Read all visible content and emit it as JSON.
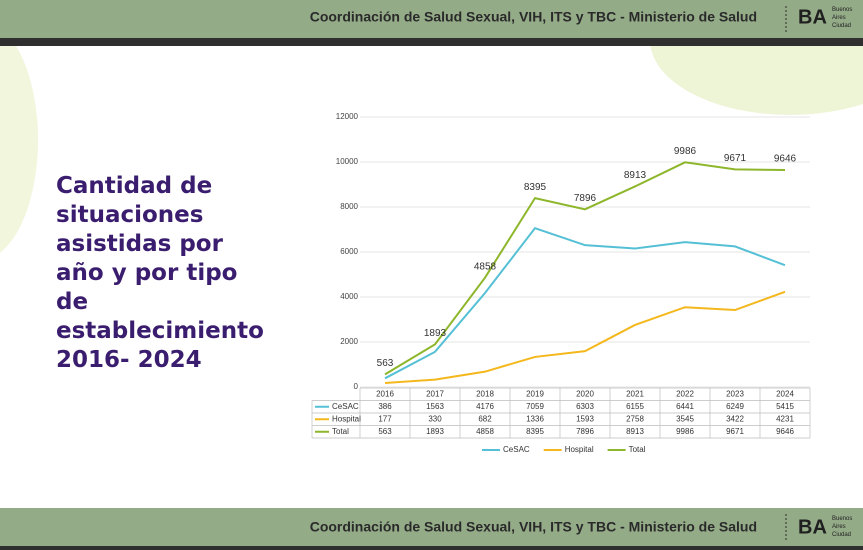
{
  "header": {
    "text": "Coordinación de Salud Sexual, VIH, ITS y TBC - Ministerio de Salud",
    "logo": "BA",
    "logo_text": "Buenos Aires Ciudad"
  },
  "slide_title": "Cantidad de situaciones asistidas por año y por tipo de establecimiento 2016- 2024",
  "footer": {
    "text": "Coordinación de Salud Sexual, VIH, ITS y TBC - Ministerio de Salud",
    "logo": "BA",
    "logo_text": "Buenos Aires Ciudad"
  },
  "chart_data": {
    "type": "line",
    "categories": [
      "2016",
      "2017",
      "2018",
      "2019",
      "2020",
      "2021",
      "2022",
      "2023",
      "2024"
    ],
    "series": [
      {
        "name": "CeSAC",
        "color": "#55c0d5",
        "values": [
          386,
          1563,
          4176,
          7059,
          6303,
          6155,
          6441,
          6249,
          5415
        ]
      },
      {
        "name": "Hospital",
        "color": "#f4b71c",
        "values": [
          177,
          330,
          682,
          1336,
          1593,
          2758,
          3545,
          3422,
          4231
        ]
      },
      {
        "name": "Total",
        "color": "#8db62a",
        "values": [
          563,
          1893,
          4858,
          8395,
          7896,
          8913,
          9986,
          9671,
          9646
        ],
        "data_labels": true
      }
    ],
    "ylim": [
      0,
      12000
    ],
    "yticks": [
      0,
      2000,
      4000,
      6000,
      8000,
      10000,
      12000
    ],
    "grid": true,
    "legend": "bottom",
    "data_table": true
  }
}
